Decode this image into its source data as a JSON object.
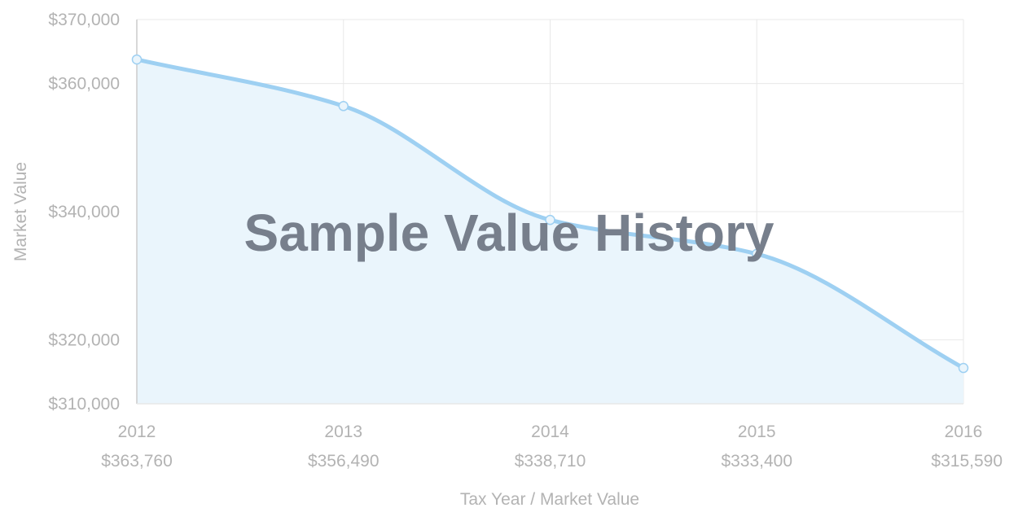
{
  "colors": {
    "line": "#9ed0f2",
    "area": "#eaf5fc",
    "grid": "#e8e8e8",
    "axis": "#cccccc",
    "text": "#b3b3b3",
    "watermark": "#777f8c"
  },
  "chart_data": {
    "type": "area",
    "x": [
      "2012",
      "2013",
      "2014",
      "2015",
      "2016"
    ],
    "series": [
      {
        "values": [
          363760,
          356490,
          338710,
          333400,
          315590
        ]
      }
    ],
    "value_labels": [
      "$363,760",
      "$356,490",
      "$338,710",
      "$333,400",
      "$315,590"
    ],
    "y_ticks": [
      370000,
      360000,
      340000,
      320000,
      310000
    ],
    "y_tick_labels": [
      "$370,000",
      "$360,000",
      "$340,000",
      "$320,000",
      "$310,000"
    ],
    "ylim": [
      310000,
      370000
    ],
    "ylabel": "Market Value",
    "xlabel": "Tax Year / Market Value",
    "watermark": "Sample Value History",
    "grid": true,
    "legend": "none"
  }
}
